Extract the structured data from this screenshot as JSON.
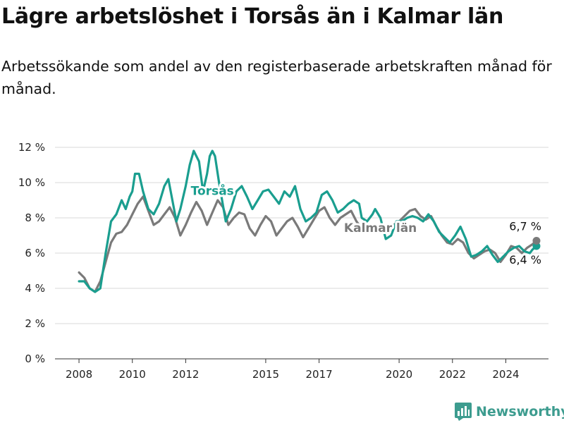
{
  "title": "Lägre arbetslöshet i Torsås än i Kalmar län",
  "subtitle": "Arbetssökande som andel av den registerbaserade arbetskraften månad för månad.",
  "brand": {
    "name": "Newsworthy"
  },
  "colors": {
    "torsas": "#1a9e8f",
    "kalmar": "#7a7a7a",
    "grid": "#d9d9d9",
    "brand": "#3d9c8f"
  },
  "chart_data": {
    "type": "line",
    "x_unit": "decimal year",
    "y_unit": "percent",
    "ylim": [
      0,
      12
    ],
    "xlim": [
      2007.1,
      2025.6
    ],
    "yticks": [
      0,
      2,
      4,
      6,
      8,
      10,
      12
    ],
    "ytick_labels": [
      "0 %",
      "2 %",
      "4 %",
      "6 %",
      "8 %",
      "10 %",
      "12 %"
    ],
    "xticks": [
      2008,
      2010,
      2012,
      2015,
      2017,
      2020,
      2022,
      2024
    ],
    "xtick_labels": [
      "2008",
      "2010",
      "2012",
      "2015",
      "2017",
      "2020",
      "2022",
      "2024"
    ],
    "grid": "horizontal",
    "series": [
      {
        "name": "Torsås",
        "label_at": [
          2013.0,
          9.3
        ],
        "end_label": "6,4 %",
        "x": [
          2008.0,
          2008.2,
          2008.4,
          2008.6,
          2008.8,
          2009.0,
          2009.2,
          2009.4,
          2009.6,
          2009.75,
          2009.9,
          2010.0,
          2010.1,
          2010.25,
          2010.4,
          2010.6,
          2010.8,
          2011.0,
          2011.2,
          2011.35,
          2011.5,
          2011.65,
          2011.8,
          2012.0,
          2012.15,
          2012.3,
          2012.5,
          2012.65,
          2012.8,
          2012.9,
          2013.0,
          2013.1,
          2013.25,
          2013.5,
          2013.7,
          2013.9,
          2014.1,
          2014.3,
          2014.5,
          2014.7,
          2014.9,
          2015.1,
          2015.3,
          2015.5,
          2015.7,
          2015.9,
          2016.1,
          2016.3,
          2016.5,
          2016.7,
          2016.9,
          2017.1,
          2017.3,
          2017.5,
          2017.7,
          2017.9,
          2018.1,
          2018.3,
          2018.5,
          2018.6,
          2018.8,
          2019.0,
          2019.1,
          2019.3,
          2019.5,
          2019.7,
          2019.9,
          2020.1,
          2020.3,
          2020.5,
          2020.7,
          2020.9,
          2021.1,
          2021.3,
          2021.5,
          2021.7,
          2021.9,
          2022.1,
          2022.3,
          2022.5,
          2022.7,
          2022.9,
          2023.1,
          2023.3,
          2023.5,
          2023.7,
          2023.9,
          2024.1,
          2024.3,
          2024.5,
          2024.7,
          2024.9,
          2025.0,
          2025.15
        ],
        "y": [
          4.4,
          4.4,
          4.0,
          3.8,
          4.0,
          6.0,
          7.8,
          8.2,
          9.0,
          8.5,
          9.2,
          9.5,
          10.5,
          10.5,
          9.5,
          8.5,
          8.2,
          8.8,
          9.8,
          10.2,
          9.0,
          7.8,
          8.5,
          9.8,
          11.0,
          11.8,
          11.2,
          9.5,
          10.5,
          11.5,
          11.8,
          11.5,
          10.0,
          7.8,
          8.5,
          9.5,
          9.8,
          9.2,
          8.5,
          9.0,
          9.5,
          9.6,
          9.2,
          8.8,
          9.5,
          9.2,
          9.8,
          8.5,
          7.8,
          8.0,
          8.3,
          9.3,
          9.5,
          9.0,
          8.3,
          8.5,
          8.8,
          9.0,
          8.8,
          8.0,
          7.8,
          8.2,
          8.5,
          8.0,
          6.8,
          7.0,
          7.8,
          7.8,
          8.0,
          8.1,
          8.0,
          7.8,
          8.2,
          7.8,
          7.2,
          6.9,
          6.6,
          7.0,
          7.5,
          6.8,
          5.8,
          5.9,
          6.1,
          6.4,
          5.9,
          5.5,
          5.8,
          6.1,
          6.3,
          6.4,
          6.1,
          6.0,
          6.2,
          6.4
        ]
      },
      {
        "name": "Kalmar län",
        "label_at": [
          2019.3,
          7.2
        ],
        "end_label": "6,7 %",
        "x": [
          2008.0,
          2008.2,
          2008.4,
          2008.6,
          2008.8,
          2009.0,
          2009.2,
          2009.4,
          2009.6,
          2009.8,
          2010.0,
          2010.2,
          2010.4,
          2010.6,
          2010.8,
          2011.0,
          2011.2,
          2011.4,
          2011.6,
          2011.8,
          2012.0,
          2012.2,
          2012.4,
          2012.6,
          2012.8,
          2013.0,
          2013.2,
          2013.4,
          2013.6,
          2013.8,
          2014.0,
          2014.2,
          2014.4,
          2014.6,
          2014.8,
          2015.0,
          2015.2,
          2015.4,
          2015.6,
          2015.8,
          2016.0,
          2016.2,
          2016.4,
          2016.6,
          2016.8,
          2017.0,
          2017.2,
          2017.4,
          2017.6,
          2017.8,
          2018.0,
          2018.2,
          2018.4,
          2018.6,
          2018.8,
          2019.0,
          2019.2,
          2019.4,
          2019.6,
          2019.8,
          2020.0,
          2020.2,
          2020.4,
          2020.6,
          2020.8,
          2021.0,
          2021.2,
          2021.4,
          2021.6,
          2021.8,
          2022.0,
          2022.2,
          2022.4,
          2022.6,
          2022.8,
          2023.0,
          2023.2,
          2023.4,
          2023.6,
          2023.8,
          2024.0,
          2024.2,
          2024.4,
          2024.6,
          2024.8,
          2025.0,
          2025.15
        ],
        "y": [
          4.9,
          4.6,
          4.0,
          3.8,
          4.4,
          5.5,
          6.6,
          7.1,
          7.2,
          7.6,
          8.2,
          8.8,
          9.2,
          8.4,
          7.6,
          7.8,
          8.2,
          8.6,
          8.0,
          7.0,
          7.6,
          8.3,
          8.9,
          8.4,
          7.6,
          8.3,
          9.0,
          8.6,
          7.6,
          8.0,
          8.3,
          8.2,
          7.4,
          7.0,
          7.6,
          8.1,
          7.8,
          7.0,
          7.4,
          7.8,
          8.0,
          7.5,
          6.9,
          7.4,
          7.9,
          8.4,
          8.6,
          8.0,
          7.6,
          8.0,
          8.2,
          8.4,
          7.8,
          7.4,
          7.5,
          7.6,
          7.5,
          7.5,
          7.4,
          7.6,
          7.8,
          8.1,
          8.4,
          8.5,
          8.1,
          7.9,
          8.1,
          7.5,
          7.0,
          6.6,
          6.5,
          6.8,
          6.6,
          6.0,
          5.7,
          5.9,
          6.1,
          6.2,
          6.0,
          5.5,
          5.9,
          6.4,
          6.3,
          6.0,
          6.3,
          6.5,
          6.7
        ]
      }
    ]
  }
}
